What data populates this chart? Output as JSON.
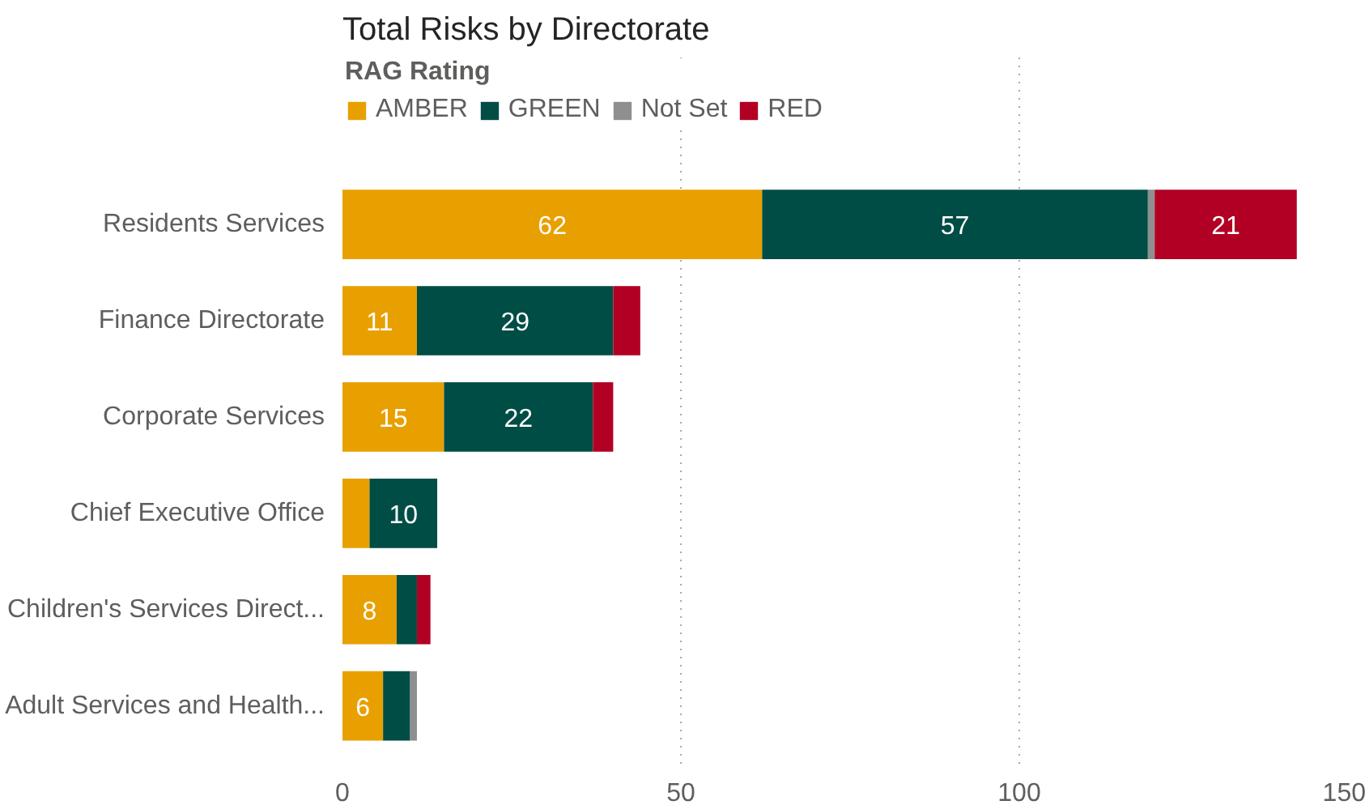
{
  "chart_data": {
    "type": "bar",
    "orientation": "horizontal",
    "stacked": true,
    "title": "Total Risks by Directorate",
    "legend_title": "RAG Rating",
    "legend": "top left",
    "grid": "x",
    "categories": [
      "Residents Services",
      "Finance Directorate",
      "Corporate Services",
      "Chief Executive Office",
      "Children's Services Direct...",
      "Adult Services and Health..."
    ],
    "xlim": [
      0,
      150
    ],
    "xticks": [
      0,
      50,
      100,
      150
    ],
    "series": [
      {
        "name": "AMBER",
        "color": "#e8a000",
        "values": [
          62,
          11,
          15,
          4,
          8,
          6
        ],
        "value_labels": [
          "62",
          "11",
          "15",
          null,
          "8",
          "6"
        ]
      },
      {
        "name": "GREEN",
        "color": "#004d45",
        "values": [
          57,
          29,
          22,
          10,
          3,
          4
        ],
        "value_labels": [
          "57",
          "29",
          "22",
          "10",
          null,
          null
        ]
      },
      {
        "name": "Not Set",
        "color": "#8f8f8f",
        "values": [
          1,
          null,
          null,
          null,
          null,
          1
        ],
        "value_labels": [
          null,
          null,
          null,
          null,
          null,
          null
        ]
      },
      {
        "name": "RED",
        "color": "#b10024",
        "values": [
          21,
          4,
          3,
          null,
          2,
          null
        ],
        "value_labels": [
          "21",
          null,
          null,
          null,
          null,
          null
        ]
      }
    ]
  }
}
